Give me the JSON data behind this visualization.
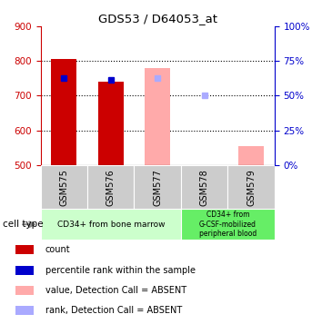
{
  "title": "GDS53 / D64053_at",
  "samples": [
    "GSM575",
    "GSM576",
    "GSM577",
    "GSM578",
    "GSM579"
  ],
  "ylim_left": [
    500,
    900
  ],
  "ylim_right": [
    0,
    100
  ],
  "yticks_left": [
    500,
    600,
    700,
    800,
    900
  ],
  "yticks_right": [
    0,
    25,
    50,
    75,
    100
  ],
  "bar_values": [
    805,
    740,
    778,
    null,
    555
  ],
  "bar_colors": [
    "#cc0000",
    "#cc0000",
    "#ffaaaa",
    null,
    "#ffaaaa"
  ],
  "percentile_values": [
    750,
    745,
    750,
    700,
    null
  ],
  "percentile_colors": [
    "#0000cc",
    "#0000cc",
    "#aaaaff",
    "#aaaaff",
    null
  ],
  "cell_type_groups": [
    {
      "label": "CD34+ from bone marrow",
      "samples_idx": [
        0,
        1,
        2
      ],
      "color": "#ccffcc"
    },
    {
      "label": "CD34+ from\nG-CSF-mobilized\nperipheral blood",
      "samples_idx": [
        3,
        4
      ],
      "color": "#66ee66"
    }
  ],
  "legend_items": [
    {
      "label": "count",
      "color": "#cc0000"
    },
    {
      "label": "percentile rank within the sample",
      "color": "#0000cc"
    },
    {
      "label": "value, Detection Call = ABSENT",
      "color": "#ffaaaa"
    },
    {
      "label": "rank, Detection Call = ABSENT",
      "color": "#aaaaff"
    }
  ],
  "cell_type_label": "cell type",
  "left_axis_color": "#cc0000",
  "right_axis_color": "#0000cc",
  "bar_width": 0.55
}
